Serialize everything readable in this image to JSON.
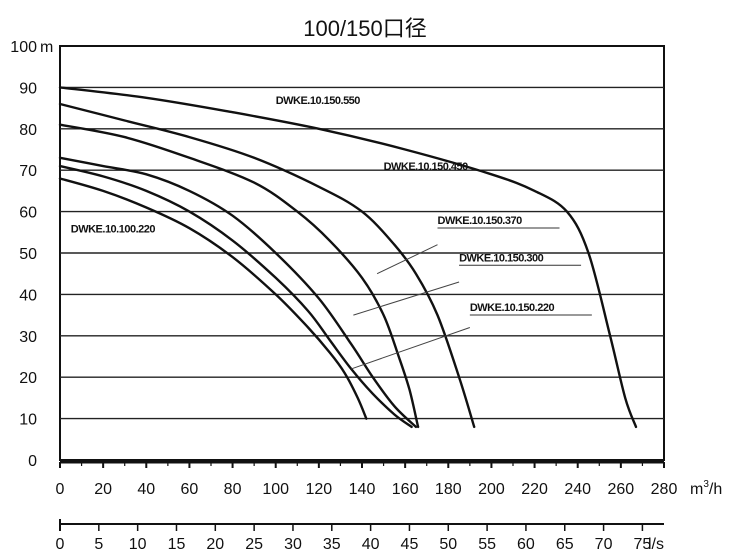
{
  "chart_data": {
    "type": "line",
    "title": "100/150口径",
    "y_unit": "m",
    "x_unit_top": "m",
    "x_unit_top_sup": "3",
    "x_unit_top_suffix": "/h",
    "x_unit_bottom": "l/s",
    "ylim": [
      0,
      100
    ],
    "xlim": [
      0,
      280
    ],
    "x2lim": [
      0,
      77.78
    ],
    "y_ticks": [
      "0",
      "10",
      "20",
      "30",
      "40",
      "50",
      "60",
      "70",
      "80",
      "90",
      "100"
    ],
    "x_ticks": [
      "0",
      "20",
      "40",
      "60",
      "80",
      "100",
      "120",
      "140",
      "160",
      "180",
      "200",
      "220",
      "240",
      "260",
      "280"
    ],
    "x2_ticks": [
      "0",
      "5",
      "10",
      "15",
      "20",
      "25",
      "30",
      "35",
      "40",
      "45",
      "50",
      "55",
      "60",
      "65",
      "70",
      "75"
    ],
    "grid": true,
    "series": [
      {
        "name": "DWKE.10.150.550",
        "x": [
          0,
          40,
          80,
          120,
          160,
          200,
          220,
          235,
          245,
          255,
          262,
          267
        ],
        "y": [
          90,
          87.5,
          84,
          80,
          75,
          69,
          65,
          60,
          50,
          30,
          15,
          8
        ]
      },
      {
        "name": "DWKE.10.150.450",
        "x": [
          0,
          30,
          60,
          90,
          120,
          140,
          155,
          165,
          175,
          185,
          192
        ],
        "y": [
          86,
          82,
          78,
          73,
          66,
          60,
          52,
          45,
          35,
          20,
          8
        ]
      },
      {
        "name": "DWKE.10.150.370",
        "x": [
          0,
          30,
          60,
          90,
          110,
          125,
          140,
          150,
          157,
          162,
          166
        ],
        "y": [
          81,
          78,
          73,
          67,
          60,
          53,
          44,
          35,
          25,
          17,
          8
        ]
      },
      {
        "name": "DWKE.10.150.300",
        "x": [
          0,
          20,
          40,
          60,
          80,
          100,
          120,
          135,
          145,
          155,
          165
        ],
        "y": [
          73,
          71,
          69,
          65,
          59,
          50,
          39,
          28,
          20,
          13,
          8
        ]
      },
      {
        "name": "DWKE.10.150.220",
        "x": [
          0,
          20,
          40,
          60,
          80,
          100,
          115,
          125,
          135,
          145,
          155,
          163
        ],
        "y": [
          71,
          68.5,
          65,
          60,
          53,
          44,
          36,
          29,
          22,
          16,
          11,
          8
        ]
      },
      {
        "name": "DWKE.10.100.220",
        "x": [
          0,
          20,
          40,
          60,
          80,
          100,
          115,
          125,
          132,
          138,
          142
        ],
        "y": [
          68,
          65,
          61,
          56,
          49,
          40,
          32,
          26,
          21,
          15,
          10
        ]
      }
    ]
  }
}
